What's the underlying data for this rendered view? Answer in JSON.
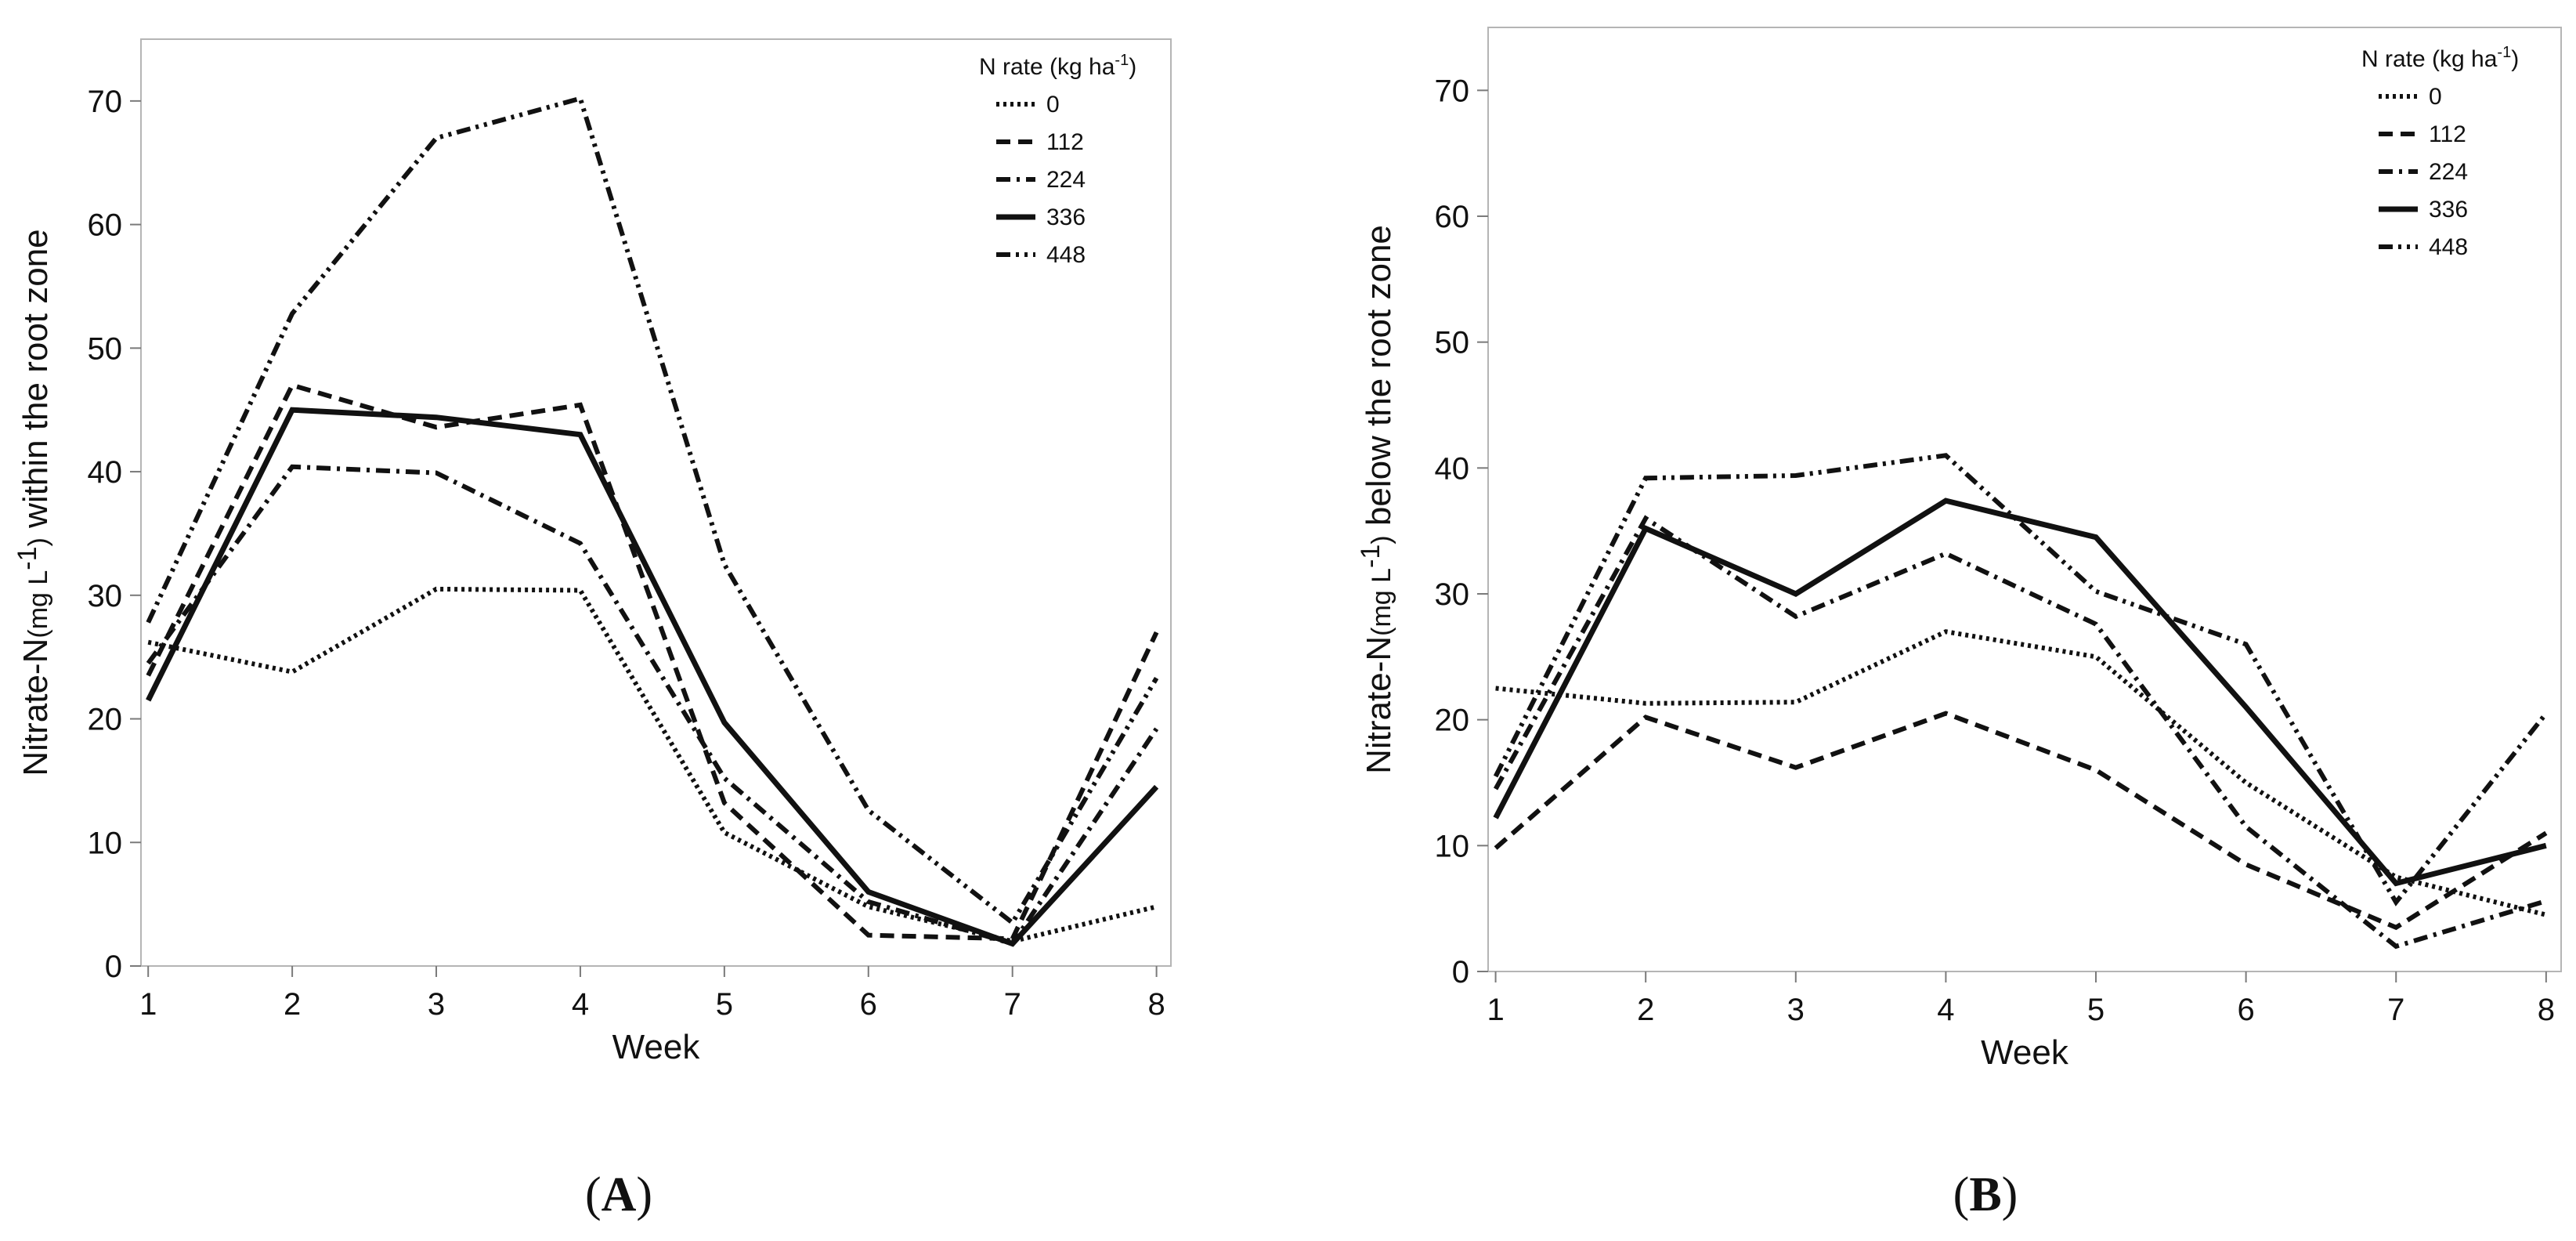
{
  "chart_data": [
    {
      "type": "line",
      "panel_label": "A",
      "title": "",
      "xlabel": "Week",
      "ylabel": {
        "main": "Nitrate-N",
        "unit_base": "(mg L",
        "unit_sup": "-1",
        "unit_end": ")",
        "suffix": " within the root zone"
      },
      "x": [
        1,
        2,
        3,
        4,
        5,
        6,
        7,
        8
      ],
      "xlim": [
        0.95,
        8.1
      ],
      "ylim": [
        0,
        75
      ],
      "yticks": [
        0,
        10,
        20,
        30,
        40,
        50,
        60,
        70
      ],
      "xticks": [
        1,
        2,
        3,
        4,
        5,
        6,
        7,
        8
      ],
      "legend": {
        "title_base": "N rate  (kg ha",
        "title_sup": "-1",
        "title_end": ")",
        "position": "top-right"
      },
      "series": [
        {
          "name": "0",
          "style": "dotted",
          "values": [
            26.2,
            23.8,
            30.5,
            30.4,
            10.8,
            4.8,
            2.0,
            4.8
          ]
        },
        {
          "name": "112",
          "style": "dashed",
          "values": [
            23.5,
            47.0,
            43.6,
            45.4,
            13.2,
            2.5,
            2.2,
            27.0
          ]
        },
        {
          "name": "224",
          "style": "dashdot",
          "values": [
            24.5,
            40.4,
            39.9,
            34.2,
            15.2,
            5.2,
            1.8,
            19.2
          ]
        },
        {
          "name": "336",
          "style": "solid",
          "values": [
            21.5,
            45.0,
            44.4,
            43.0,
            19.7,
            6.0,
            1.8,
            14.5
          ]
        },
        {
          "name": "448",
          "style": "dashdotdot",
          "values": [
            27.8,
            52.8,
            67.0,
            70.2,
            32.5,
            12.6,
            3.5,
            23.3
          ]
        }
      ]
    },
    {
      "type": "line",
      "panel_label": "B",
      "title": "",
      "xlabel": "Week",
      "ylabel": {
        "main": "Nitrate-N",
        "unit_base": "(mg L",
        "unit_sup": "-1",
        "unit_end": ")",
        "suffix": " below the root zone"
      },
      "x": [
        1,
        2,
        3,
        4,
        5,
        6,
        7,
        8
      ],
      "xlim": [
        0.95,
        8.1
      ],
      "ylim": [
        0,
        75
      ],
      "yticks": [
        0,
        10,
        20,
        30,
        40,
        50,
        60,
        70
      ],
      "xticks": [
        1,
        2,
        3,
        4,
        5,
        6,
        7,
        8
      ],
      "legend": {
        "title_base": "N rate  (kg ha",
        "title_sup": "-1",
        "title_end": ")",
        "position": "top-right"
      },
      "series": [
        {
          "name": "0",
          "style": "dotted",
          "values": [
            22.5,
            21.3,
            21.4,
            27.0,
            25.0,
            15.0,
            7.5,
            4.5
          ]
        },
        {
          "name": "112",
          "style": "dashed",
          "values": [
            9.8,
            20.2,
            16.2,
            20.5,
            16.0,
            8.5,
            3.5,
            11.0
          ]
        },
        {
          "name": "224",
          "style": "dashdot",
          "values": [
            14.5,
            36.0,
            28.2,
            33.2,
            27.6,
            11.5,
            2.0,
            5.6
          ]
        },
        {
          "name": "336",
          "style": "solid",
          "values": [
            12.2,
            35.2,
            30.0,
            37.4,
            34.5,
            21.0,
            7.0,
            10.0
          ]
        },
        {
          "name": "448",
          "style": "dashdotdot",
          "values": [
            15.5,
            39.2,
            39.4,
            41.0,
            30.2,
            26.0,
            5.5,
            20.5
          ]
        }
      ]
    }
  ]
}
